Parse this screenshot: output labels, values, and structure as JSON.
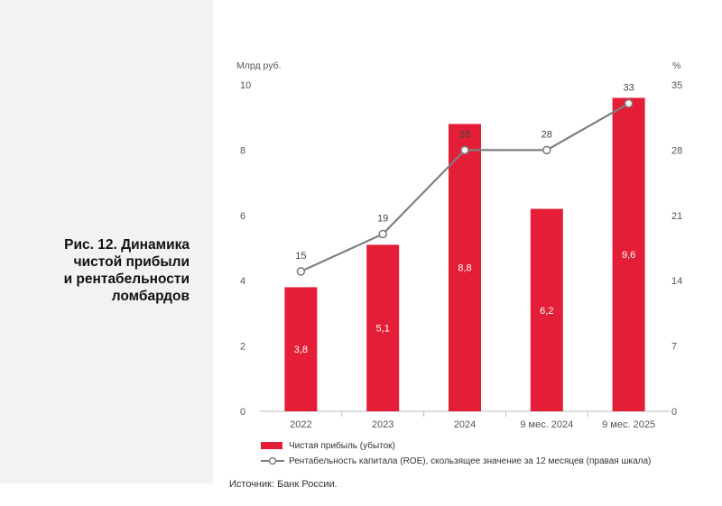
{
  "caption": {
    "lines": [
      "Рис. 12. Динамика",
      "чистой прибыли",
      "и рентабельности",
      "ломбардов"
    ]
  },
  "source": "Источник: Банк России.",
  "colors": {
    "bar": "#e31e36",
    "line": "#7f7f7f",
    "marker_fill": "#ffffff",
    "axis": "#bdbdbd"
  },
  "chart_data": {
    "type": "bar",
    "categories": [
      "2022",
      "2023",
      "2024",
      "9 мес. 2024",
      "9 мес. 2025"
    ],
    "series": [
      {
        "name": "Чистая прибыль (убыток)",
        "type": "bar",
        "axis": "left",
        "values": [
          3.8,
          5.1,
          8.8,
          6.2,
          9.6
        ],
        "labels": [
          "3,8",
          "5,1",
          "8,8",
          "6,2",
          "9,6"
        ]
      },
      {
        "name": "Рентабельность капитала (ROE), скользящее значение за 12 месяцев (правая шкала)",
        "type": "line",
        "axis": "right",
        "values": [
          15,
          19,
          28,
          28,
          33
        ],
        "labels": [
          "15",
          "19",
          "28",
          "28",
          "33"
        ]
      }
    ],
    "y_left": {
      "unit": "Млрд руб.",
      "lim": [
        0,
        10
      ],
      "ticks": [
        0,
        2,
        4,
        6,
        8,
        10
      ]
    },
    "y_right": {
      "unit": "%",
      "lim": [
        0,
        35
      ],
      "ticks": [
        0,
        7,
        14,
        21,
        28,
        35
      ]
    },
    "grid": false,
    "legend_position": "bottom-left"
  }
}
